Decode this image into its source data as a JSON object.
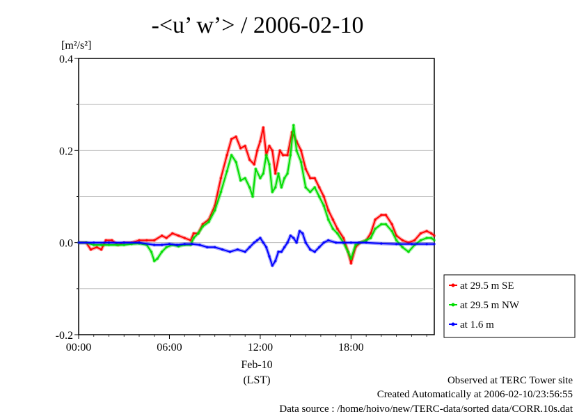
{
  "chart_data": {
    "type": "line",
    "title": "-<u’ w’> / 2006-02-10",
    "ylabel_unit": "[m²/s²]",
    "ylim": [
      -0.2,
      0.4
    ],
    "yticks": [
      -0.2,
      0.0,
      0.2,
      0.4
    ],
    "ytick_labels": [
      "-0.2",
      "0.0",
      "0.2",
      "0.4"
    ],
    "xlim": [
      0,
      23.5
    ],
    "xticks": [
      0,
      6,
      12,
      18
    ],
    "xtick_labels": [
      "00:00",
      "06:00",
      "12:00",
      "18:00"
    ],
    "xdate_label": "Feb-10",
    "xunit_label": "(LST)",
    "grid": "horizontal dashed",
    "legend_position": "right",
    "series": [
      {
        "name": "at 29.5 m SE",
        "color": "#ff0000",
        "points": [
          [
            0,
            0.0
          ],
          [
            0.5,
            0.0
          ],
          [
            0.8,
            -0.015
          ],
          [
            1.2,
            -0.01
          ],
          [
            1.5,
            -0.015
          ],
          [
            1.8,
            0.005
          ],
          [
            2.2,
            0.005
          ],
          [
            2.6,
            -0.005
          ],
          [
            3.0,
            0.0
          ],
          [
            3.5,
            0.0
          ],
          [
            4.0,
            0.005
          ],
          [
            4.5,
            0.005
          ],
          [
            5.0,
            0.005
          ],
          [
            5.5,
            0.015
          ],
          [
            5.8,
            0.01
          ],
          [
            6.2,
            0.02
          ],
          [
            6.6,
            0.015
          ],
          [
            7.0,
            0.01
          ],
          [
            7.4,
            0.005
          ],
          [
            7.6,
            0.02
          ],
          [
            7.9,
            0.02
          ],
          [
            8.2,
            0.04
          ],
          [
            8.6,
            0.05
          ],
          [
            9.0,
            0.08
          ],
          [
            9.4,
            0.14
          ],
          [
            9.8,
            0.19
          ],
          [
            10.1,
            0.225
          ],
          [
            10.4,
            0.23
          ],
          [
            10.7,
            0.205
          ],
          [
            11.0,
            0.21
          ],
          [
            11.3,
            0.18
          ],
          [
            11.6,
            0.17
          ],
          [
            11.8,
            0.2
          ],
          [
            12.0,
            0.22
          ],
          [
            12.2,
            0.25
          ],
          [
            12.4,
            0.19
          ],
          [
            12.6,
            0.21
          ],
          [
            12.8,
            0.2
          ],
          [
            13.0,
            0.15
          ],
          [
            13.3,
            0.2
          ],
          [
            13.5,
            0.19
          ],
          [
            13.8,
            0.19
          ],
          [
            14.1,
            0.24
          ],
          [
            14.4,
            0.22
          ],
          [
            14.7,
            0.2
          ],
          [
            15.0,
            0.16
          ],
          [
            15.3,
            0.14
          ],
          [
            15.6,
            0.14
          ],
          [
            15.9,
            0.12
          ],
          [
            16.2,
            0.1
          ],
          [
            16.5,
            0.07
          ],
          [
            16.8,
            0.05
          ],
          [
            17.1,
            0.03
          ],
          [
            17.5,
            0.01
          ],
          [
            17.8,
            -0.02
          ],
          [
            18.0,
            -0.045
          ],
          [
            18.3,
            -0.01
          ],
          [
            18.6,
            0.0
          ],
          [
            19.0,
            0.005
          ],
          [
            19.3,
            0.02
          ],
          [
            19.6,
            0.05
          ],
          [
            20.0,
            0.06
          ],
          [
            20.3,
            0.06
          ],
          [
            20.7,
            0.04
          ],
          [
            21.0,
            0.015
          ],
          [
            21.4,
            0.005
          ],
          [
            21.8,
            0.0
          ],
          [
            22.2,
            0.005
          ],
          [
            22.6,
            0.02
          ],
          [
            23.0,
            0.025
          ],
          [
            23.3,
            0.02
          ],
          [
            23.5,
            0.015
          ]
        ]
      },
      {
        "name": "at 29.5 m NW",
        "color": "#00dd00",
        "points": [
          [
            0,
            0.0
          ],
          [
            0.5,
            0.0
          ],
          [
            1.0,
            -0.005
          ],
          [
            1.5,
            -0.005
          ],
          [
            2.0,
            -0.005
          ],
          [
            2.5,
            -0.005
          ],
          [
            3.0,
            -0.005
          ],
          [
            3.5,
            -0.003
          ],
          [
            4.0,
            -0.002
          ],
          [
            4.5,
            -0.005
          ],
          [
            4.8,
            -0.02
          ],
          [
            5.0,
            -0.04
          ],
          [
            5.2,
            -0.035
          ],
          [
            5.5,
            -0.02
          ],
          [
            5.8,
            -0.01
          ],
          [
            6.2,
            -0.005
          ],
          [
            6.6,
            -0.008
          ],
          [
            7.0,
            -0.005
          ],
          [
            7.4,
            -0.005
          ],
          [
            7.6,
            0.01
          ],
          [
            7.9,
            0.02
          ],
          [
            8.2,
            0.035
          ],
          [
            8.6,
            0.045
          ],
          [
            9.0,
            0.07
          ],
          [
            9.4,
            0.11
          ],
          [
            9.8,
            0.155
          ],
          [
            10.1,
            0.19
          ],
          [
            10.4,
            0.175
          ],
          [
            10.7,
            0.135
          ],
          [
            11.0,
            0.14
          ],
          [
            11.3,
            0.12
          ],
          [
            11.5,
            0.1
          ],
          [
            11.7,
            0.16
          ],
          [
            12.0,
            0.14
          ],
          [
            12.2,
            0.15
          ],
          [
            12.4,
            0.19
          ],
          [
            12.6,
            0.17
          ],
          [
            12.8,
            0.11
          ],
          [
            13.0,
            0.12
          ],
          [
            13.2,
            0.15
          ],
          [
            13.4,
            0.12
          ],
          [
            13.6,
            0.14
          ],
          [
            13.8,
            0.15
          ],
          [
            14.0,
            0.19
          ],
          [
            14.2,
            0.255
          ],
          [
            14.4,
            0.2
          ],
          [
            14.7,
            0.175
          ],
          [
            15.0,
            0.12
          ],
          [
            15.3,
            0.11
          ],
          [
            15.6,
            0.12
          ],
          [
            15.9,
            0.1
          ],
          [
            16.2,
            0.08
          ],
          [
            16.5,
            0.05
          ],
          [
            16.8,
            0.03
          ],
          [
            17.1,
            0.02
          ],
          [
            17.5,
            0.0
          ],
          [
            17.8,
            -0.02
          ],
          [
            18.0,
            -0.035
          ],
          [
            18.3,
            -0.005
          ],
          [
            18.6,
            0.0
          ],
          [
            19.0,
            0.005
          ],
          [
            19.3,
            0.01
          ],
          [
            19.6,
            0.03
          ],
          [
            20.0,
            0.04
          ],
          [
            20.3,
            0.04
          ],
          [
            20.7,
            0.025
          ],
          [
            21.0,
            0.005
          ],
          [
            21.4,
            -0.01
          ],
          [
            21.8,
            -0.02
          ],
          [
            22.2,
            -0.005
          ],
          [
            22.6,
            0.005
          ],
          [
            23.0,
            0.01
          ],
          [
            23.3,
            0.01
          ],
          [
            23.5,
            0.005
          ]
        ]
      },
      {
        "name": "at 1.6 m",
        "color": "#0000ff",
        "points": [
          [
            0,
            0.0
          ],
          [
            1.0,
            0.0
          ],
          [
            2.0,
            0.0
          ],
          [
            3.0,
            0.0
          ],
          [
            4.0,
            0.0
          ],
          [
            5.0,
            -0.005
          ],
          [
            5.5,
            -0.005
          ],
          [
            6.0,
            -0.003
          ],
          [
            6.5,
            -0.005
          ],
          [
            7.0,
            -0.003
          ],
          [
            7.5,
            -0.003
          ],
          [
            8.0,
            -0.005
          ],
          [
            8.5,
            -0.01
          ],
          [
            9.0,
            -0.01
          ],
          [
            9.5,
            -0.015
          ],
          [
            10.0,
            -0.02
          ],
          [
            10.5,
            -0.015
          ],
          [
            11.0,
            -0.02
          ],
          [
            11.3,
            -0.01
          ],
          [
            11.6,
            0.0
          ],
          [
            11.8,
            0.005
          ],
          [
            12.0,
            0.01
          ],
          [
            12.2,
            0.0
          ],
          [
            12.4,
            -0.01
          ],
          [
            12.6,
            -0.03
          ],
          [
            12.8,
            -0.05
          ],
          [
            13.0,
            -0.04
          ],
          [
            13.2,
            -0.02
          ],
          [
            13.4,
            -0.02
          ],
          [
            13.6,
            -0.01
          ],
          [
            13.8,
            0.0
          ],
          [
            14.0,
            0.015
          ],
          [
            14.2,
            0.01
          ],
          [
            14.4,
            0.0
          ],
          [
            14.6,
            0.025
          ],
          [
            14.8,
            0.02
          ],
          [
            15.0,
            0.0
          ],
          [
            15.3,
            -0.015
          ],
          [
            15.6,
            -0.02
          ],
          [
            15.9,
            -0.01
          ],
          [
            16.2,
            0.0
          ],
          [
            16.5,
            0.005
          ],
          [
            17.0,
            0.0
          ],
          [
            17.5,
            0.0
          ],
          [
            18.0,
            0.0
          ],
          [
            18.5,
            0.0
          ],
          [
            19.0,
            0.0
          ],
          [
            20.0,
            -0.002
          ],
          [
            21.0,
            -0.003
          ],
          [
            22.0,
            -0.003
          ],
          [
            23.0,
            -0.003
          ],
          [
            23.5,
            -0.003
          ]
        ]
      }
    ]
  },
  "footer": {
    "line1": "Observed at TERC Tower site",
    "line2": "Created Automatically at 2006-02-10/23:56:55",
    "line3": "Data source : /home/hoivo/new/TERC-data/sorted  data/CORR.10s.dat"
  }
}
